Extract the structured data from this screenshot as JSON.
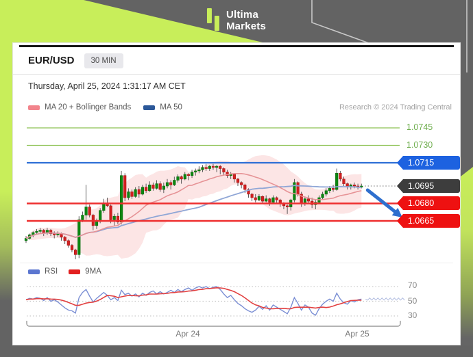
{
  "brand": {
    "line1": "Ultima",
    "line2": "Markets"
  },
  "colors": {
    "brand_lime": "#c8ee5a",
    "background": "#636363",
    "bull": "#0c8712",
    "bear": "#d22020"
  },
  "card": {
    "symbol": "EUR/USD",
    "timeframe": "30 MIN",
    "timestamp": "Thursday, April 25, 2024 1:31:17 AM CET",
    "copyright": "Research © 2024 Trading Central",
    "legend_main": [
      {
        "label": "MA 20 + Bollinger Bands",
        "color": "#f2848c"
      },
      {
        "label": "MA 50",
        "color": "#2c5899"
      }
    ],
    "legend_rsi": [
      {
        "label": "RSI",
        "color": "#5b76d0"
      },
      {
        "label": "9MA",
        "color": "#e21f1f"
      }
    ]
  },
  "current_price": "1.0695",
  "chart_data": [
    {
      "type": "candlestick",
      "name": "EUR/USD 30-minute candles with MA20, MA50 and Bollinger Bands",
      "x_axis_labels": [
        "Apr 24",
        "Apr 25"
      ],
      "ylim": [
        1.0628,
        1.0752
      ],
      "grid": false,
      "price_levels": [
        {
          "label": "1.0745",
          "value": 1.0745,
          "line_color": "#8cc152",
          "width": 1.2,
          "label_style": "green-text"
        },
        {
          "label": "1.0730",
          "value": 1.073,
          "line_color": "#8cc152",
          "width": 1.2,
          "label_style": "green-text"
        },
        {
          "label": "1.0715",
          "value": 1.0715,
          "line_color": "#2e6fd6",
          "width": 2.2,
          "label_style": "tag",
          "tag_color": "#1d62e0"
        },
        {
          "label": "1.0695",
          "value": 1.0695,
          "line_color": "#8d8d8d",
          "width": 1.3,
          "label_style": "tag",
          "tag_color": "#3d3d3d",
          "current": true
        },
        {
          "label": "1.0680",
          "value": 1.068,
          "line_color": "#ee2e2e",
          "width": 2.4,
          "label_style": "tag",
          "tag_color": "#ee1111"
        },
        {
          "label": "1.0665",
          "value": 1.0665,
          "line_color": "#ee2e2e",
          "width": 2.4,
          "label_style": "tag",
          "tag_color": "#ee1111"
        }
      ],
      "overlays": [
        "MA20",
        "MA50",
        "Bollinger(20, 2sigma)"
      ],
      "annotations": [
        {
          "type": "arrow",
          "from_price": 1.0695,
          "to_price": 1.0665,
          "direction": "down-right",
          "color": "#2e6fce"
        }
      ],
      "candles_ohlc": [
        [
          1.0648,
          1.0652,
          1.0646,
          1.065
        ],
        [
          1.065,
          1.0654,
          1.0649,
          1.0653
        ],
        [
          1.0653,
          1.0656,
          1.0651,
          1.0655
        ],
        [
          1.0655,
          1.0658,
          1.0654,
          1.0656
        ],
        [
          1.0656,
          1.0659,
          1.0654,
          1.0657
        ],
        [
          1.0657,
          1.0658,
          1.0652,
          1.0655
        ],
        [
          1.0655,
          1.0659,
          1.0653,
          1.0657
        ],
        [
          1.0657,
          1.0658,
          1.0652,
          1.0654
        ],
        [
          1.0654,
          1.0656,
          1.065,
          1.0653
        ],
        [
          1.0653,
          1.0656,
          1.0651,
          1.0654
        ],
        [
          1.0654,
          1.0655,
          1.0648,
          1.0651
        ],
        [
          1.0651,
          1.0652,
          1.0645,
          1.0648
        ],
        [
          1.0648,
          1.0649,
          1.0642,
          1.0644
        ],
        [
          1.0644,
          1.0645,
          1.0638,
          1.064
        ],
        [
          1.064,
          1.0641,
          1.0632,
          1.0636
        ],
        [
          1.0636,
          1.0669,
          1.0633,
          1.0666
        ],
        [
          1.0666,
          1.0673,
          1.0664,
          1.067
        ],
        [
          1.067,
          1.0696,
          1.0666,
          1.0677
        ],
        [
          1.0677,
          1.0679,
          1.0668,
          1.067
        ],
        [
          1.067,
          1.0671,
          1.0657,
          1.0661
        ],
        [
          1.0661,
          1.0667,
          1.0658,
          1.0665
        ],
        [
          1.0665,
          1.0676,
          1.0663,
          1.0674
        ],
        [
          1.0674,
          1.0684,
          1.0672,
          1.068
        ],
        [
          1.068,
          1.0685,
          1.0677,
          1.0678
        ],
        [
          1.0678,
          1.0679,
          1.0663,
          1.0666
        ],
        [
          1.0666,
          1.0671,
          1.0661,
          1.0669
        ],
        [
          1.0669,
          1.0672,
          1.0662,
          1.0664
        ],
        [
          1.0664,
          1.0708,
          1.0662,
          1.0704
        ],
        [
          1.0704,
          1.0706,
          1.0682,
          1.0685
        ],
        [
          1.0685,
          1.0693,
          1.0683,
          1.069
        ],
        [
          1.069,
          1.0692,
          1.0684,
          1.0686
        ],
        [
          1.0686,
          1.0694,
          1.0685,
          1.0692
        ],
        [
          1.0692,
          1.0695,
          1.0685,
          1.0688
        ],
        [
          1.0688,
          1.0696,
          1.0687,
          1.0694
        ],
        [
          1.0694,
          1.0697,
          1.0689,
          1.0691
        ],
        [
          1.0691,
          1.0699,
          1.069,
          1.0696
        ],
        [
          1.0696,
          1.0698,
          1.0691,
          1.0693
        ],
        [
          1.0693,
          1.07,
          1.0692,
          1.0697
        ],
        [
          1.0697,
          1.0699,
          1.069,
          1.0692
        ],
        [
          1.0692,
          1.0698,
          1.0689,
          1.0695
        ],
        [
          1.0695,
          1.0701,
          1.0693,
          1.0698
        ],
        [
          1.0698,
          1.07,
          1.0692,
          1.0696
        ],
        [
          1.0696,
          1.0703,
          1.0695,
          1.07
        ],
        [
          1.07,
          1.0705,
          1.0698,
          1.0703
        ],
        [
          1.0703,
          1.0704,
          1.0697,
          1.0701
        ],
        [
          1.0701,
          1.0707,
          1.07,
          1.0705
        ],
        [
          1.0705,
          1.0706,
          1.07,
          1.0704
        ],
        [
          1.0704,
          1.0709,
          1.0702,
          1.0707
        ],
        [
          1.0707,
          1.071,
          1.0704,
          1.0708
        ],
        [
          1.0708,
          1.0712,
          1.0706,
          1.0709
        ],
        [
          1.0709,
          1.0713,
          1.0707,
          1.0711
        ],
        [
          1.0711,
          1.0714,
          1.0708,
          1.071
        ],
        [
          1.071,
          1.0713,
          1.0708,
          1.0712
        ],
        [
          1.0712,
          1.0714,
          1.0709,
          1.0711
        ],
        [
          1.0711,
          1.0713,
          1.0707,
          1.0712
        ],
        [
          1.0712,
          1.0713,
          1.0705,
          1.071
        ],
        [
          1.071,
          1.0711,
          1.0704,
          1.0707
        ],
        [
          1.0707,
          1.0709,
          1.0702,
          1.0704
        ],
        [
          1.0704,
          1.0707,
          1.0701,
          1.0705
        ],
        [
          1.0705,
          1.0706,
          1.0698,
          1.0701
        ],
        [
          1.0701,
          1.0702,
          1.0695,
          1.0698
        ],
        [
          1.0698,
          1.0699,
          1.0693,
          1.0696
        ],
        [
          1.0696,
          1.0697,
          1.0689,
          1.0692
        ],
        [
          1.0692,
          1.0693,
          1.0685,
          1.0688
        ],
        [
          1.0688,
          1.0689,
          1.0682,
          1.0685
        ],
        [
          1.0685,
          1.0688,
          1.0681,
          1.0683
        ],
        [
          1.0683,
          1.0688,
          1.0682,
          1.0686
        ],
        [
          1.0686,
          1.0687,
          1.068,
          1.0682
        ],
        [
          1.0682,
          1.0687,
          1.0681,
          1.0684
        ],
        [
          1.0684,
          1.0685,
          1.0678,
          1.0681
        ],
        [
          1.0681,
          1.0687,
          1.068,
          1.0685
        ],
        [
          1.0685,
          1.0686,
          1.068,
          1.0683
        ],
        [
          1.0683,
          1.0684,
          1.0677,
          1.068
        ],
        [
          1.068,
          1.0681,
          1.0675,
          1.0678
        ],
        [
          1.0678,
          1.0679,
          1.0671,
          1.0677
        ],
        [
          1.0677,
          1.0684,
          1.0674,
          1.0683
        ],
        [
          1.0683,
          1.0701,
          1.0681,
          1.0698
        ],
        [
          1.0698,
          1.0699,
          1.0686,
          1.0688
        ],
        [
          1.0688,
          1.069,
          1.0677,
          1.068
        ],
        [
          1.068,
          1.0686,
          1.0678,
          1.0684
        ],
        [
          1.0684,
          1.0687,
          1.068,
          1.0682
        ],
        [
          1.0682,
          1.0685,
          1.0676,
          1.0679
        ],
        [
          1.0679,
          1.0683,
          1.0675,
          1.0681
        ],
        [
          1.0681,
          1.0687,
          1.068,
          1.0685
        ],
        [
          1.0685,
          1.069,
          1.0683,
          1.0688
        ],
        [
          1.0688,
          1.0693,
          1.0686,
          1.0691
        ],
        [
          1.0691,
          1.0695,
          1.0689,
          1.0693
        ],
        [
          1.0693,
          1.0696,
          1.069,
          1.0692
        ],
        [
          1.0692,
          1.071,
          1.0691,
          1.0706
        ],
        [
          1.0706,
          1.0708,
          1.0699,
          1.0701
        ],
        [
          1.0701,
          1.0703,
          1.0695,
          1.0697
        ],
        [
          1.0697,
          1.0698,
          1.0692,
          1.0694
        ],
        [
          1.0694,
          1.0697,
          1.0692,
          1.0696
        ],
        [
          1.0696,
          1.0698,
          1.0693,
          1.0695
        ],
        [
          1.0695,
          1.0697,
          1.0692,
          1.0694
        ],
        [
          1.0694,
          1.0697,
          1.0693,
          1.0695
        ]
      ]
    },
    {
      "type": "line",
      "name": "RSI sub-panel",
      "ylim": [
        22,
        82
      ],
      "gridlines": [
        70,
        50,
        30
      ],
      "gridline_labels": [
        "70",
        "50",
        "30"
      ],
      "legend_position": "top-left",
      "series": [
        {
          "name": "RSI",
          "color": "#7b8fd4",
          "values": [
            52,
            54,
            53,
            55,
            54,
            51,
            55,
            50,
            52,
            49,
            45,
            41,
            38,
            37,
            34,
            55,
            62,
            66,
            57,
            49,
            54,
            58,
            62,
            58,
            52,
            55,
            51,
            65,
            59,
            61,
            57,
            60,
            56,
            61,
            58,
            62,
            64,
            60,
            63,
            60,
            62,
            65,
            62,
            66,
            63,
            66,
            68,
            65,
            68,
            70,
            68,
            70,
            67,
            69,
            70,
            66,
            60,
            55,
            58,
            52,
            47,
            44,
            40,
            37,
            35,
            38,
            43,
            39,
            44,
            38,
            45,
            42,
            39,
            36,
            33,
            42,
            55,
            47,
            38,
            45,
            42,
            34,
            31,
            40,
            46,
            50,
            53,
            50,
            61,
            53,
            48,
            46,
            51,
            49,
            52,
            53
          ]
        },
        {
          "name": "9MA",
          "color": "#e24040",
          "derived": "9-period moving average of RSI"
        }
      ]
    }
  ]
}
